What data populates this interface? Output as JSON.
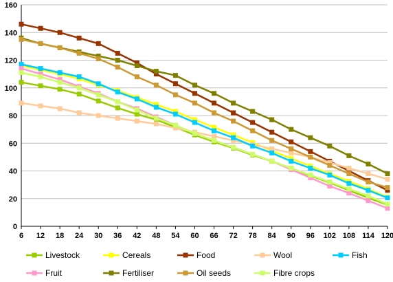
{
  "chart_data": {
    "type": "line",
    "x": [
      6,
      12,
      18,
      24,
      30,
      36,
      42,
      48,
      54,
      60,
      66,
      72,
      78,
      84,
      90,
      96,
      102,
      108,
      114,
      120
    ],
    "ylim": [
      0,
      160
    ],
    "yticks": [
      0,
      20,
      40,
      60,
      80,
      100,
      120,
      140,
      160
    ],
    "xlim": [
      6,
      120
    ],
    "grid": "horizontal",
    "legend_position": "bottom",
    "series": [
      {
        "name": "Livestock",
        "color": "#99CC00",
        "marker": "square",
        "values": [
          104,
          101.5,
          99,
          95.5,
          90.5,
          85.5,
          81,
          77,
          71.5,
          66,
          61,
          56.5,
          51.5,
          47,
          42,
          36.5,
          31.5,
          26,
          20.5,
          15.5
        ]
      },
      {
        "name": "Cereals",
        "color": "#FFFF00",
        "marker": "square",
        "values": [
          116,
          113,
          110,
          106.5,
          102,
          98,
          93,
          88,
          83,
          77,
          71.5,
          66,
          60.5,
          54.5,
          49,
          43.5,
          38,
          32.5,
          27,
          21
        ]
      },
      {
        "name": "Food",
        "color": "#993300",
        "marker": "square",
        "values": [
          146,
          143,
          140,
          136,
          132,
          125,
          118,
          110,
          103,
          96,
          89,
          82,
          75,
          68,
          61,
          54,
          47,
          40,
          33,
          26
        ]
      },
      {
        "name": "Wool",
        "color": "#FFCC99",
        "marker": "square",
        "values": [
          89,
          87,
          85,
          82,
          80,
          78,
          76,
          74,
          71,
          68,
          65,
          62,
          59,
          56,
          53,
          50,
          46,
          42,
          38,
          34
        ]
      },
      {
        "name": "Fish",
        "color": "#00CCFF",
        "marker": "square",
        "values": [
          117,
          114,
          111,
          108,
          103,
          97,
          92,
          86,
          81,
          75,
          69,
          64,
          58,
          53,
          47,
          42,
          37,
          31,
          26,
          20.5
        ]
      },
      {
        "name": "Fruit",
        "color": "#FF99CC",
        "marker": "square",
        "values": [
          114,
          110,
          106,
          101,
          96,
          90,
          85,
          79,
          73,
          67,
          62,
          57,
          52,
          47,
          41,
          35,
          29,
          24,
          18.5,
          13
        ]
      },
      {
        "name": "Fertiliser",
        "color": "#808000",
        "marker": "square",
        "values": [
          136,
          132,
          129,
          126,
          123,
          120,
          116,
          112,
          109,
          102,
          96,
          89,
          83,
          77,
          70,
          64,
          58,
          51,
          45,
          38
        ]
      },
      {
        "name": "Oil seeds",
        "color": "#CC9933",
        "marker": "square",
        "values": [
          135,
          132,
          129,
          125,
          121,
          115,
          108,
          102,
          95,
          89,
          82,
          76,
          69,
          62,
          56,
          50,
          44,
          38,
          32,
          28
        ]
      },
      {
        "name": "Fibre crops",
        "color": "#CCFF66",
        "marker": "square",
        "values": [
          111,
          108,
          104,
          100,
          95,
          90,
          84,
          78,
          73,
          67,
          62,
          57,
          52,
          47,
          42,
          37,
          32,
          27,
          22,
          16
        ]
      }
    ]
  }
}
